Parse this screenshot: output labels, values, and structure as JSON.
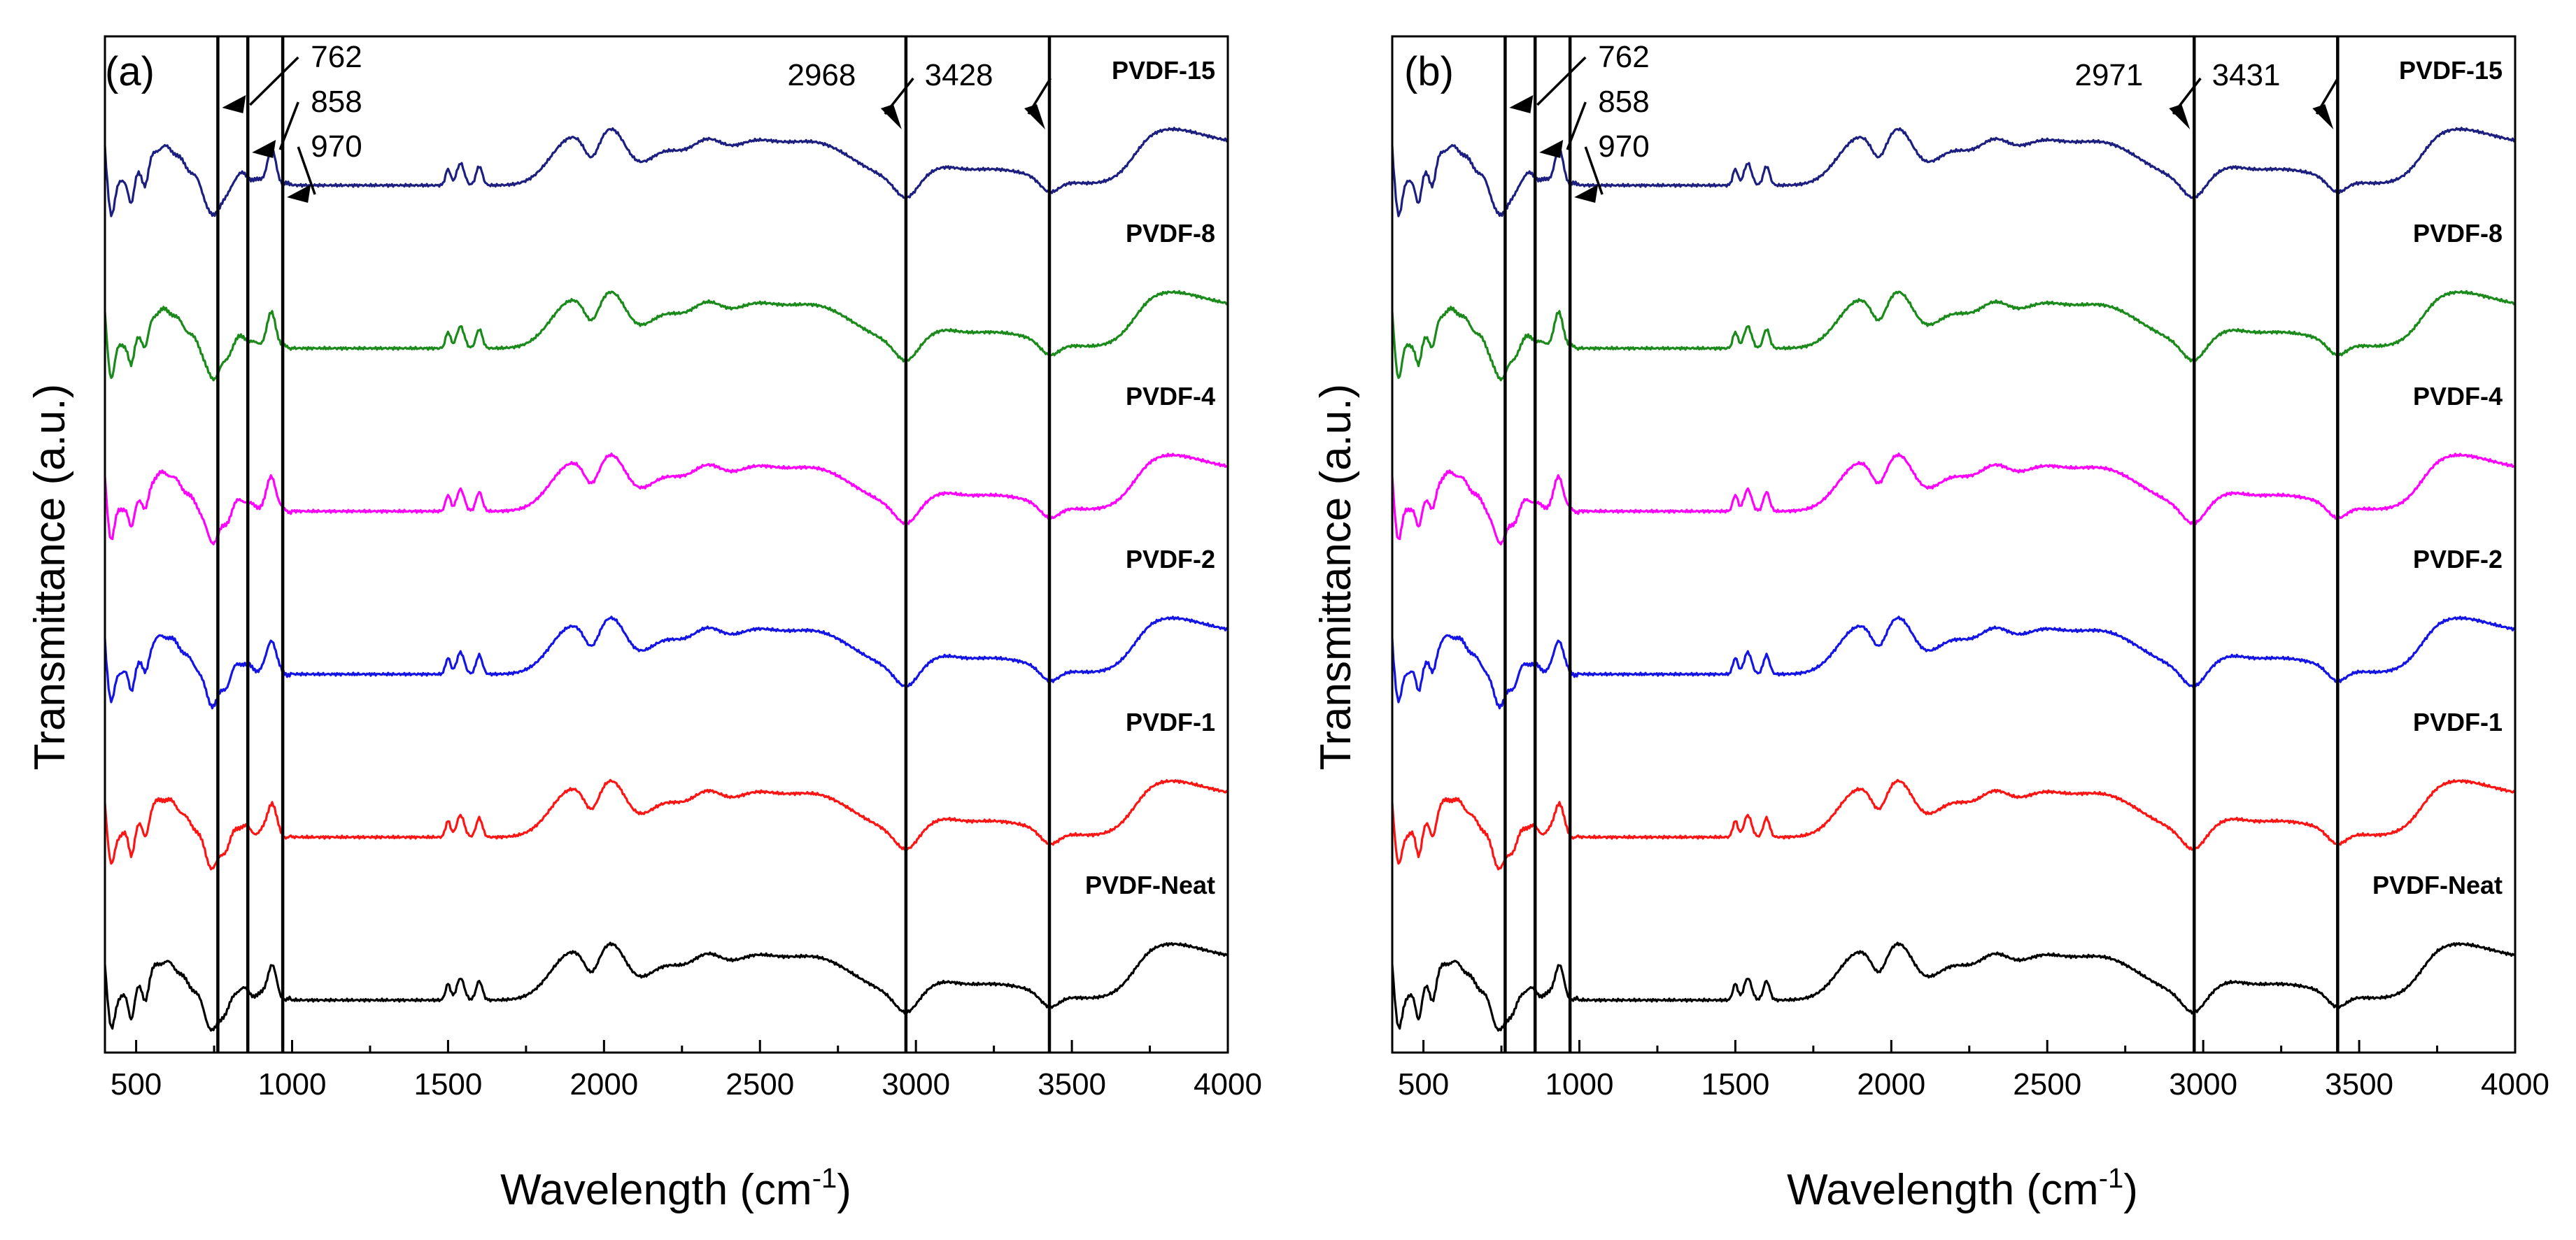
{
  "chart_data": [
    {
      "panel_label": "(a)",
      "type": "line",
      "xlabel_main": "Wavelength (cm",
      "xlabel_sup": "-1",
      "xlabel_close": ")",
      "ylabel": "Transmittance (a.u.)",
      "xlim": [
        400,
        4000
      ],
      "xticks": [
        500,
        1000,
        1500,
        2000,
        2500,
        3000,
        3500,
        4000
      ],
      "xtick_labels": [
        "500",
        "1000",
        "1500",
        "2000",
        "2500",
        "3000",
        "3500",
        "4000"
      ],
      "y_ticks": "none",
      "series": [
        {
          "name": "PVDF-15",
          "color": "#1c1f80",
          "offset": 5
        },
        {
          "name": "PVDF-8",
          "color": "#1a8a1a",
          "offset": 4
        },
        {
          "name": "PVDF-4",
          "color": "#ff00ff",
          "offset": 3
        },
        {
          "name": "PVDF-2",
          "color": "#1414e6",
          "offset": 2
        },
        {
          "name": "PVDF-1",
          "color": "#ff1414",
          "offset": 1
        },
        {
          "name": "PVDF-Neat",
          "color": "#000000",
          "offset": 0
        }
      ],
      "reference_lines": [
        762,
        858,
        970,
        2968,
        3428
      ],
      "annotations": [
        {
          "text": "762",
          "x": 762,
          "label_x": 1060
        },
        {
          "text": "858",
          "x": 858,
          "label_x": 1060
        },
        {
          "text": "970",
          "x": 970,
          "label_x": 1060
        },
        {
          "text": "2968",
          "x": 2968,
          "label_x": 2830
        },
        {
          "text": "3428",
          "x": 3428,
          "label_x": 3270
        }
      ]
    },
    {
      "panel_label": "(b)",
      "type": "line",
      "xlabel_main": "Wavelength (cm",
      "xlabel_sup": "-1",
      "xlabel_close": ")",
      "ylabel": "Transmittance (a.u.)",
      "xlim": [
        400,
        4000
      ],
      "xticks": [
        500,
        1000,
        1500,
        2000,
        2500,
        3000,
        3500,
        4000
      ],
      "xtick_labels": [
        "500",
        "1000",
        "1500",
        "2000",
        "2500",
        "3000",
        "3500",
        "4000"
      ],
      "y_ticks": "none",
      "series": [
        {
          "name": "PVDF-15",
          "color": "#1c1f80",
          "offset": 5
        },
        {
          "name": "PVDF-8",
          "color": "#1a8a1a",
          "offset": 4
        },
        {
          "name": "PVDF-4",
          "color": "#ff00ff",
          "offset": 3
        },
        {
          "name": "PVDF-2",
          "color": "#1414e6",
          "offset": 2
        },
        {
          "name": "PVDF-1",
          "color": "#ff1414",
          "offset": 1
        },
        {
          "name": "PVDF-Neat",
          "color": "#000000",
          "offset": 0
        }
      ],
      "reference_lines": [
        762,
        858,
        970,
        2971,
        3431
      ],
      "annotations": [
        {
          "text": "762",
          "x": 762,
          "label_x": 1060
        },
        {
          "text": "858",
          "x": 858,
          "label_x": 1060
        },
        {
          "text": "970",
          "x": 970,
          "label_x": 1060
        },
        {
          "text": "2971",
          "x": 2971,
          "label_x": 2830
        },
        {
          "text": "3431",
          "x": 3431,
          "label_x": 3270
        }
      ]
    }
  ]
}
